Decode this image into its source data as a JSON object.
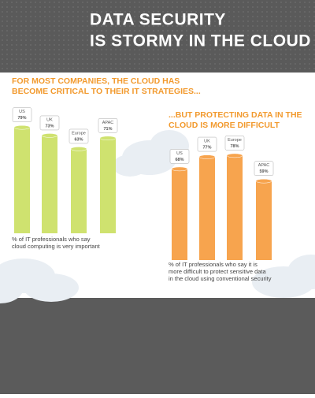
{
  "header": {
    "title_lines": [
      "DATA SECURITY",
      "IS STORMY IN THE CLOUD"
    ]
  },
  "chart_data": [
    {
      "type": "bar",
      "title_lines": [
        "FOR MOST COMPANIES, THE CLOUD HAS",
        "BECOME CRITICAL TO THEIR IT STRATEGIES..."
      ],
      "categories": [
        "US",
        "UK",
        "Europe",
        "APAC"
      ],
      "values": [
        79,
        73,
        63,
        71
      ],
      "value_labels": [
        "79%",
        "73%",
        "63%",
        "71%"
      ],
      "color": "#cfe26f",
      "caption_lines": [
        "% of IT professionals who say",
        "cloud computing is very important"
      ]
    },
    {
      "type": "bar",
      "title_lines": [
        "...BUT PROTECTING DATA IN THE",
        "CLOUD IS MORE DIFFICULT"
      ],
      "categories": [
        "US",
        "UK",
        "Europe",
        "APAC"
      ],
      "values": [
        68,
        77,
        78,
        59
      ],
      "value_labels": [
        "68%",
        "77%",
        "78%",
        "59%"
      ],
      "color": "#f7a44e",
      "caption_lines": [
        "% of IT professionals who say it is",
        "more difficult to protect sensitive data",
        "in the cloud using conventional security"
      ]
    }
  ]
}
